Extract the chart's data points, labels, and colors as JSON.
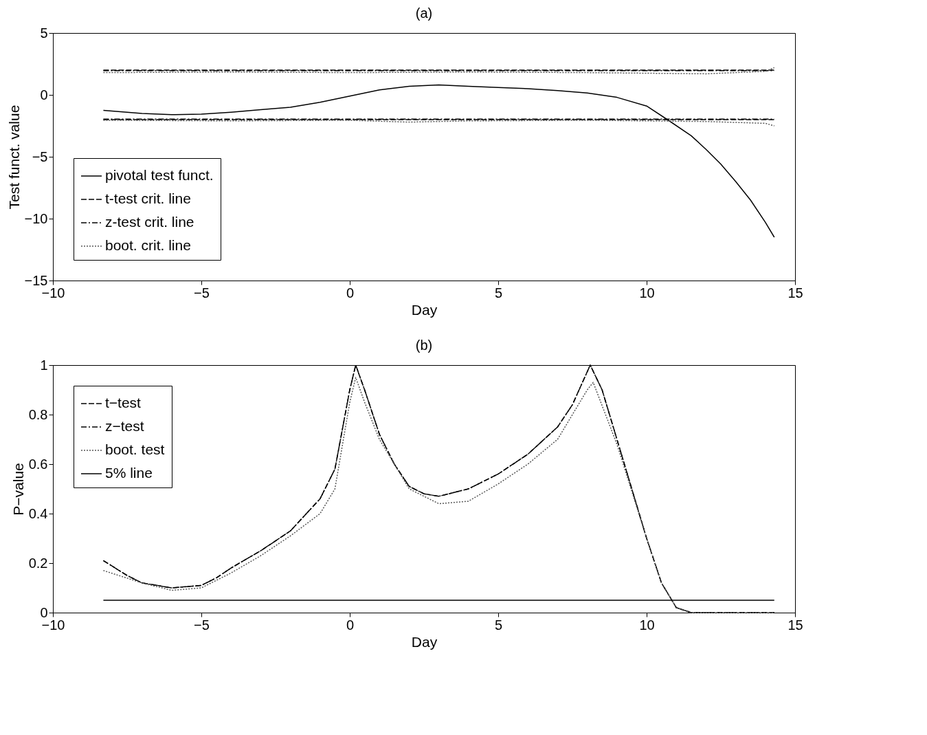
{
  "chart_data": [
    {
      "type": "line",
      "title": "(a)",
      "xlabel": "Day",
      "ylabel": "Test funct. value",
      "xlim": [
        -10,
        15
      ],
      "xticks": [
        -10,
        -5,
        0,
        5,
        10,
        15
      ],
      "ylim": [
        -15,
        5
      ],
      "yticks": [
        -15,
        -10,
        -5,
        0,
        5
      ],
      "grid": false,
      "legend": "bottom left",
      "series": [
        {
          "name": "pivotal test funct.",
          "color": "#000000",
          "line_style": "solid",
          "x": [
            -8.3,
            -7,
            -6,
            -5,
            -4,
            -3,
            -2,
            -1,
            0,
            1,
            2,
            3,
            4,
            5,
            6,
            7,
            8,
            9,
            10,
            10.7,
            11.5,
            12,
            12.5,
            13,
            13.5,
            14,
            14.3
          ],
          "values": [
            -1.25,
            -1.5,
            -1.6,
            -1.55,
            -1.4,
            -1.2,
            -1.0,
            -0.6,
            -0.1,
            0.4,
            0.7,
            0.8,
            0.7,
            0.6,
            0.5,
            0.35,
            0.15,
            -0.2,
            -0.9,
            -2.0,
            -3.3,
            -4.4,
            -5.6,
            -7.0,
            -8.5,
            -10.3,
            -11.5
          ]
        },
        {
          "name": "t-test crit. line",
          "color": "#000000",
          "line_style": "dashed",
          "x": [
            -8.3,
            14.3
          ],
          "values": [
            2.0,
            2.0
          ]
        },
        {
          "color": "#000000",
          "line_style": "dashed",
          "x": [
            -8.3,
            14.3
          ],
          "values": [
            -2.0,
            -2.0
          ]
        },
        {
          "name": "z-test crit. line",
          "color": "#000000",
          "line_style": "dashdot",
          "x": [
            -8.3,
            14.3
          ],
          "values": [
            1.96,
            1.96
          ]
        },
        {
          "color": "#000000",
          "line_style": "dashdot",
          "x": [
            -8.3,
            14.3
          ],
          "values": [
            -1.96,
            -1.96
          ]
        },
        {
          "name": "boot. crit. line",
          "color": "#555555",
          "line_style": "dotted",
          "x": [
            -8.3,
            -4,
            0,
            4,
            8,
            12,
            14,
            14.3
          ],
          "values": [
            1.8,
            1.85,
            1.8,
            1.85,
            1.8,
            1.7,
            1.9,
            2.2
          ]
        },
        {
          "color": "#555555",
          "line_style": "dotted",
          "x": [
            -8.3,
            -4,
            0,
            2,
            4,
            8,
            12,
            14,
            14.3
          ],
          "values": [
            -2.05,
            -2.1,
            -2.05,
            -2.2,
            -2.1,
            -2.05,
            -2.15,
            -2.3,
            -2.5
          ]
        }
      ]
    },
    {
      "type": "line",
      "title": "(b)",
      "xlabel": "Day",
      "ylabel": "P−value",
      "xlim": [
        -10,
        15
      ],
      "xticks": [
        -10,
        -5,
        0,
        5,
        10,
        15
      ],
      "ylim": [
        0,
        1
      ],
      "yticks": [
        0,
        0.2,
        0.4,
        0.6,
        0.8,
        1
      ],
      "grid": false,
      "legend": "top left",
      "series": [
        {
          "name": "t−test",
          "color": "#000000",
          "line_style": "dashed",
          "x": [
            -8.3,
            -7.5,
            -7,
            -6,
            -5,
            -4.5,
            -4,
            -3,
            -2,
            -1,
            -0.5,
            0,
            0.2,
            0.5,
            1,
            1.5,
            2,
            2.5,
            3,
            4,
            5,
            6,
            7,
            7.5,
            8.1,
            8.5,
            9,
            9.5,
            10,
            10.5,
            11,
            11.5,
            14.3
          ],
          "values": [
            0.21,
            0.15,
            0.12,
            0.1,
            0.11,
            0.14,
            0.18,
            0.25,
            0.33,
            0.46,
            0.58,
            0.9,
            1.0,
            0.9,
            0.72,
            0.6,
            0.51,
            0.48,
            0.47,
            0.5,
            0.56,
            0.64,
            0.75,
            0.84,
            1.0,
            0.9,
            0.7,
            0.5,
            0.3,
            0.12,
            0.02,
            0.0,
            0.0
          ]
        },
        {
          "name": "z−test",
          "color": "#000000",
          "line_style": "dashdot",
          "x": [
            -8.3,
            -7.5,
            -7,
            -6,
            -5,
            -4.5,
            -4,
            -3,
            -2,
            -1,
            -0.5,
            0,
            0.2,
            0.5,
            1,
            1.5,
            2,
            2.5,
            3,
            4,
            5,
            6,
            7,
            7.5,
            8.1,
            8.5,
            9,
            9.5,
            10,
            10.5,
            11,
            11.5,
            14.3
          ],
          "values": [
            0.21,
            0.15,
            0.12,
            0.1,
            0.11,
            0.14,
            0.18,
            0.25,
            0.33,
            0.46,
            0.58,
            0.9,
            1.0,
            0.9,
            0.72,
            0.6,
            0.51,
            0.48,
            0.47,
            0.5,
            0.56,
            0.64,
            0.75,
            0.84,
            1.0,
            0.9,
            0.7,
            0.5,
            0.3,
            0.12,
            0.02,
            0.0,
            0.0
          ]
        },
        {
          "name": "boot. test",
          "color": "#555555",
          "line_style": "dotted",
          "x": [
            -8.3,
            -7,
            -6,
            -5,
            -4,
            -3,
            -2,
            -1,
            -0.5,
            0,
            0.2,
            0.5,
            1,
            2,
            3,
            4,
            5,
            6,
            7,
            8,
            8.2,
            9,
            10,
            10.5,
            11,
            11.5,
            14.3
          ],
          "values": [
            0.17,
            0.12,
            0.09,
            0.1,
            0.16,
            0.23,
            0.31,
            0.4,
            0.5,
            0.85,
            0.95,
            0.85,
            0.7,
            0.5,
            0.44,
            0.45,
            0.52,
            0.6,
            0.7,
            0.9,
            0.93,
            0.68,
            0.3,
            0.12,
            0.02,
            0.0,
            0.0
          ]
        },
        {
          "name": "5% line",
          "color": "#000000",
          "line_style": "solid",
          "x": [
            -8.3,
            14.3
          ],
          "values": [
            0.05,
            0.05
          ]
        }
      ]
    }
  ]
}
